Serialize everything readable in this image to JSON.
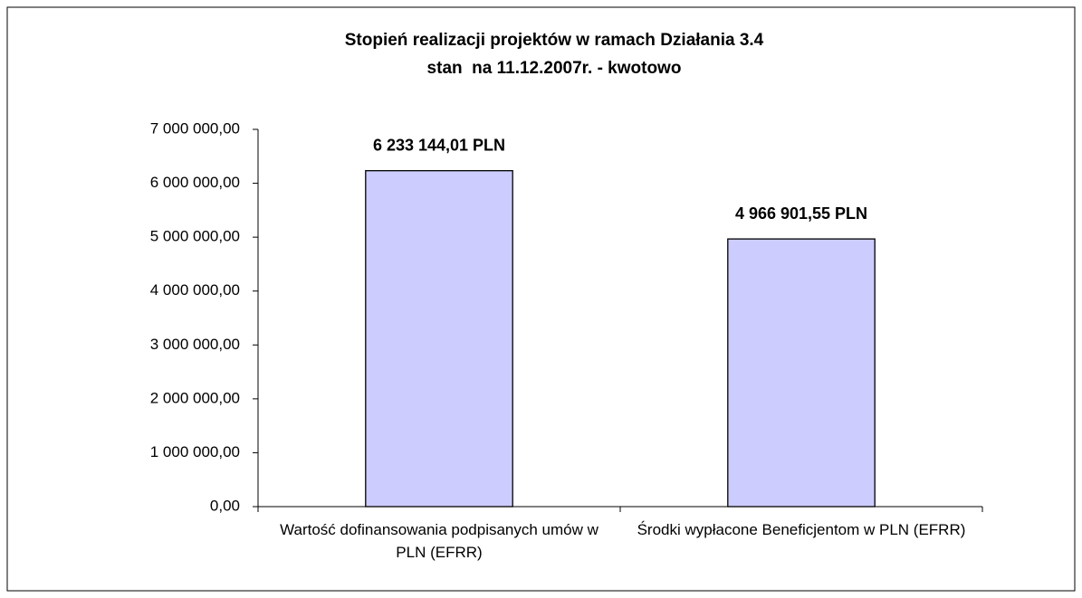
{
  "chart_data": {
    "type": "bar",
    "title": "Stopień realizacji projektów w ramach Działania 3.4",
    "subtitle": "stan  na 11.12.2007r. - kwotowo",
    "categories": [
      "Wartość dofinansowania podpisanych umów w PLN (EFRR)",
      "Środki wypłacone Beneficjentom w PLN (EFRR)"
    ],
    "values": [
      6233144.01,
      4966901.55
    ],
    "value_labels": [
      "6 233 144,01 PLN",
      "4 966 901,55 PLN"
    ],
    "color": "#ccccff",
    "ylim": [
      0,
      7000000
    ],
    "yticks": [
      {
        "value": 0,
        "label": "0,00"
      },
      {
        "value": 1000000,
        "label": "1 000 000,00"
      },
      {
        "value": 2000000,
        "label": "2 000 000,00"
      },
      {
        "value": 3000000,
        "label": "3 000 000,00"
      },
      {
        "value": 4000000,
        "label": "4 000 000,00"
      },
      {
        "value": 5000000,
        "label": "5 000 000,00"
      },
      {
        "value": 6000000,
        "label": "6 000 000,00"
      },
      {
        "value": 7000000,
        "label": "7 000 000,00"
      }
    ],
    "grid": false
  }
}
